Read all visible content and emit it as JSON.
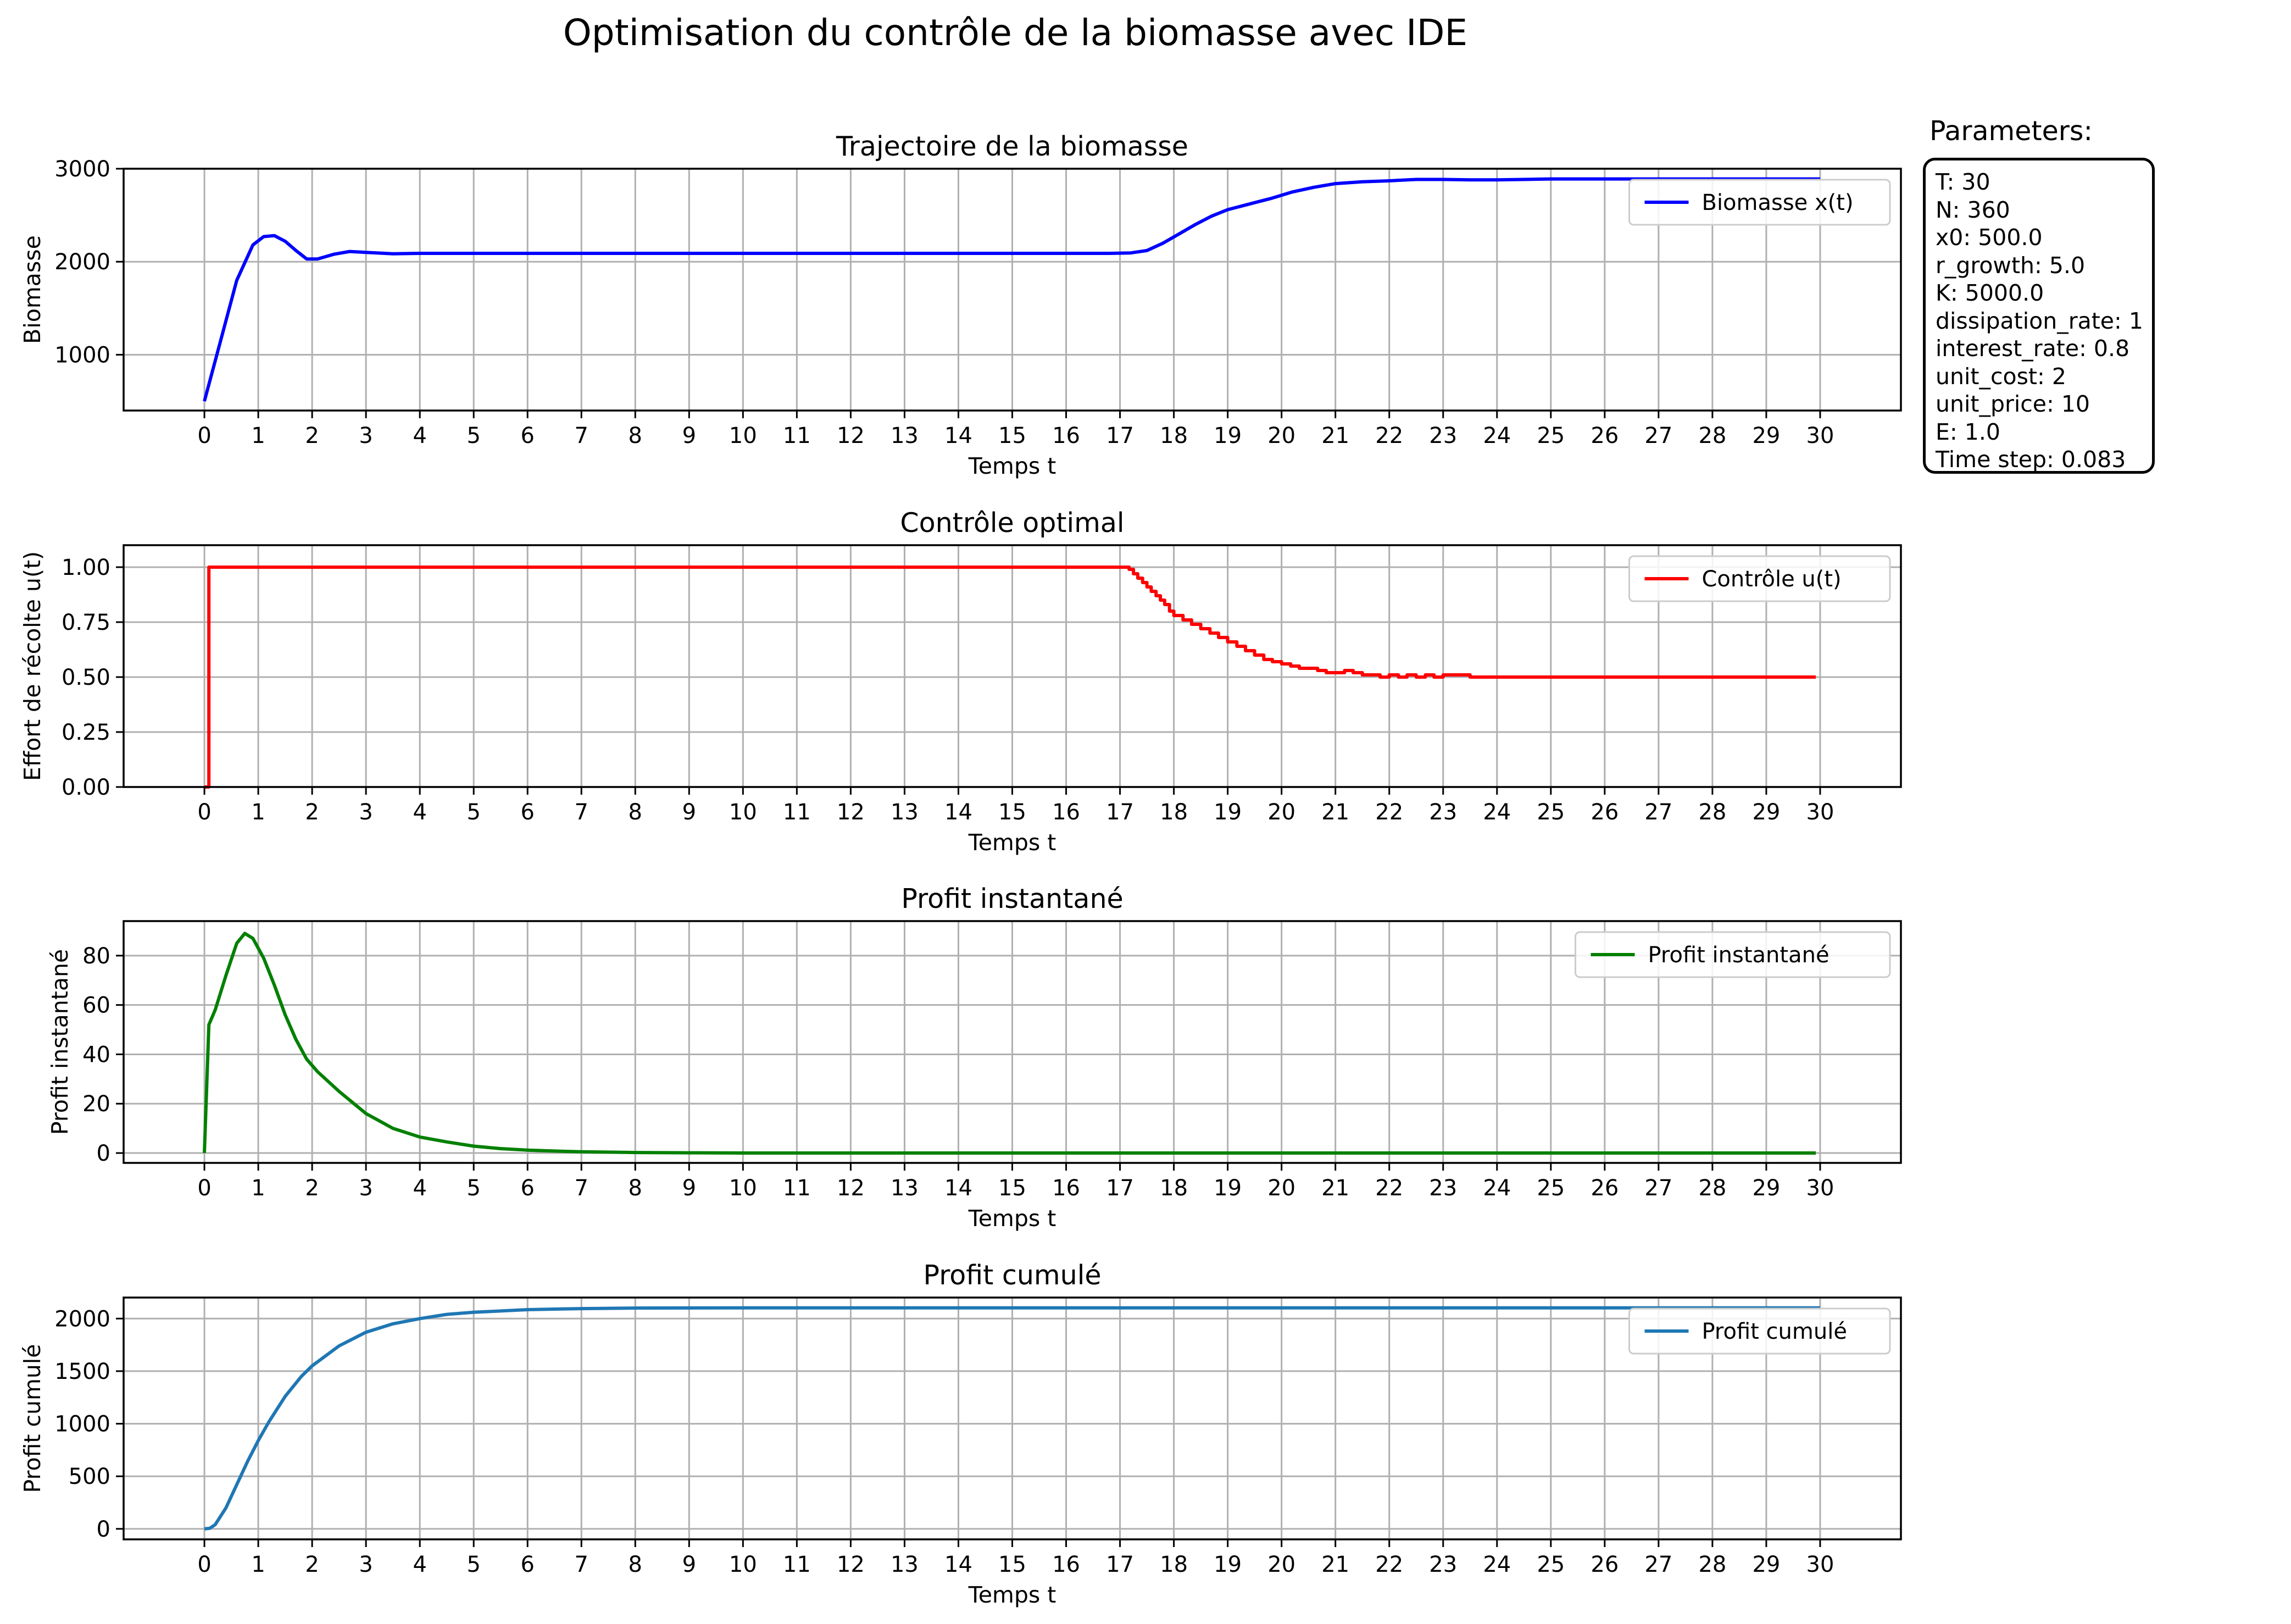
{
  "figure_title": "Optimisation du contrôle de la biomasse avec IDE",
  "parameters": {
    "title": "Parameters:",
    "lines": [
      "T: 30",
      "N: 360",
      "x0: 500.0",
      "r_growth: 5.0",
      "K: 5000.0",
      "dissipation_rate: 1",
      "interest_rate: 0.8",
      "unit_cost: 2",
      "unit_price: 10",
      "E: 1.0",
      "Time step: 0.083"
    ]
  },
  "chart_data": [
    {
      "type": "line",
      "title": "Trajectoire de la biomasse",
      "xlabel": "Temps t",
      "ylabel": "Biomasse",
      "xlim": [
        -1.5,
        31.5
      ],
      "ylim": [
        400,
        3000
      ],
      "xticks": [
        0,
        1,
        2,
        3,
        4,
        5,
        6,
        7,
        8,
        9,
        10,
        11,
        12,
        13,
        14,
        15,
        16,
        17,
        18,
        19,
        20,
        21,
        22,
        23,
        24,
        25,
        26,
        27,
        28,
        29,
        30
      ],
      "yticks": [
        1000,
        2000,
        3000
      ],
      "grid": true,
      "legend": "top-right",
      "series": [
        {
          "name": "Biomasse x(t)",
          "color": "#0000ff",
          "step": false,
          "x": [
            0,
            0.3,
            0.6,
            0.9,
            1.1,
            1.3,
            1.5,
            1.7,
            1.9,
            2.1,
            2.4,
            2.7,
            3.0,
            3.5,
            4.0,
            5,
            8,
            12,
            16,
            16.8,
            17.2,
            17.5,
            17.8,
            18.1,
            18.4,
            18.7,
            19.0,
            19.4,
            19.8,
            20.2,
            20.6,
            21.0,
            21.5,
            22.0,
            22.5,
            23.0,
            23.5,
            24.0,
            24.5,
            25.0,
            25.5,
            26,
            27,
            28,
            29,
            30
          ],
          "y": [
            500,
            1150,
            1800,
            2180,
            2270,
            2280,
            2220,
            2120,
            2030,
            2030,
            2080,
            2110,
            2100,
            2085,
            2090,
            2090,
            2090,
            2090,
            2090,
            2090,
            2095,
            2120,
            2200,
            2300,
            2400,
            2490,
            2560,
            2620,
            2680,
            2750,
            2800,
            2840,
            2860,
            2870,
            2885,
            2885,
            2880,
            2880,
            2885,
            2890,
            2890,
            2890,
            2890,
            2890,
            2890,
            2890
          ]
        }
      ]
    },
    {
      "type": "line",
      "title": "Contrôle optimal",
      "xlabel": "Temps t",
      "ylabel": "Effort de récolte u(t)",
      "xlim": [
        -1.5,
        31.5
      ],
      "ylim": [
        0,
        1.1
      ],
      "xticks": [
        0,
        1,
        2,
        3,
        4,
        5,
        6,
        7,
        8,
        9,
        10,
        11,
        12,
        13,
        14,
        15,
        16,
        17,
        18,
        19,
        20,
        21,
        22,
        23,
        24,
        25,
        26,
        27,
        28,
        29,
        30
      ],
      "yticks": [
        0.0,
        0.25,
        0.5,
        0.75,
        1.0
      ],
      "grid": true,
      "legend": "top-right",
      "series": [
        {
          "name": "Contrôle u(t)",
          "color": "#ff0000",
          "step": true,
          "x": [
            0,
            0.083,
            16.67,
            17.0,
            17.17,
            17.25,
            17.33,
            17.42,
            17.5,
            17.58,
            17.67,
            17.75,
            17.83,
            17.92,
            18.0,
            18.17,
            18.33,
            18.5,
            18.67,
            18.83,
            19.0,
            19.17,
            19.33,
            19.5,
            19.67,
            19.83,
            20.0,
            20.17,
            20.33,
            20.5,
            20.67,
            20.83,
            21.0,
            21.17,
            21.33,
            21.5,
            21.67,
            21.83,
            22.0,
            22.17,
            22.33,
            22.5,
            22.67,
            22.83,
            23.0,
            23.5,
            24.0,
            24.5,
            25.0,
            26.0,
            27.0,
            28.0,
            29.0,
            29.92
          ],
          "y": [
            0,
            1.0,
            1.0,
            1.0,
            0.99,
            0.97,
            0.95,
            0.93,
            0.91,
            0.89,
            0.87,
            0.85,
            0.83,
            0.8,
            0.78,
            0.76,
            0.74,
            0.72,
            0.7,
            0.68,
            0.66,
            0.64,
            0.62,
            0.6,
            0.58,
            0.57,
            0.56,
            0.55,
            0.54,
            0.54,
            0.53,
            0.52,
            0.52,
            0.53,
            0.52,
            0.51,
            0.51,
            0.5,
            0.51,
            0.5,
            0.51,
            0.5,
            0.51,
            0.5,
            0.51,
            0.5,
            0.5,
            0.5,
            0.5,
            0.5,
            0.5,
            0.5,
            0.5,
            0.5
          ]
        }
      ]
    },
    {
      "type": "line",
      "title": "Profit instantané",
      "xlabel": "Temps t",
      "ylabel": "Profit instantané",
      "xlim": [
        -1.5,
        31.5
      ],
      "ylim": [
        -4,
        94
      ],
      "xticks": [
        0,
        1,
        2,
        3,
        4,
        5,
        6,
        7,
        8,
        9,
        10,
        11,
        12,
        13,
        14,
        15,
        16,
        17,
        18,
        19,
        20,
        21,
        22,
        23,
        24,
        25,
        26,
        27,
        28,
        29,
        30
      ],
      "yticks": [
        0,
        20,
        40,
        60,
        80
      ],
      "grid": true,
      "legend": "top-right",
      "series": [
        {
          "name": "Profit instantané",
          "color": "#008000",
          "step": false,
          "x": [
            0,
            0.083,
            0.2,
            0.4,
            0.6,
            0.75,
            0.9,
            1.1,
            1.3,
            1.5,
            1.7,
            1.9,
            2.1,
            2.5,
            3.0,
            3.5,
            4.0,
            4.5,
            5.0,
            5.5,
            6.0,
            6.5,
            7.0,
            8.0,
            9.0,
            10,
            15,
            20,
            25,
            29.92
          ],
          "y": [
            0,
            52,
            58,
            72,
            85,
            89,
            87,
            79,
            68,
            56,
            46,
            38,
            33,
            25,
            16,
            10,
            6.5,
            4.5,
            2.8,
            1.8,
            1.2,
            0.8,
            0.5,
            0.2,
            0.1,
            0,
            0,
            0,
            0,
            0
          ]
        }
      ]
    },
    {
      "type": "line",
      "title": "Profit cumulé",
      "xlabel": "Temps t",
      "ylabel": "Profit cumulé",
      "xlim": [
        -1.5,
        31.5
      ],
      "ylim": [
        -100,
        2200
      ],
      "xticks": [
        0,
        1,
        2,
        3,
        4,
        5,
        6,
        7,
        8,
        9,
        10,
        11,
        12,
        13,
        14,
        15,
        16,
        17,
        18,
        19,
        20,
        21,
        22,
        23,
        24,
        25,
        26,
        27,
        28,
        29,
        30
      ],
      "yticks": [
        0,
        500,
        1000,
        1500,
        2000
      ],
      "grid": true,
      "legend": "top-right",
      "series": [
        {
          "name": "Profit cumulé",
          "color": "#1f77b4",
          "step": false,
          "x": [
            0,
            0.1,
            0.2,
            0.4,
            0.6,
            0.8,
            1.0,
            1.2,
            1.5,
            1.8,
            2.0,
            2.5,
            3.0,
            3.5,
            4.0,
            4.5,
            5.0,
            6.0,
            7.0,
            8.0,
            10,
            15,
            20,
            25,
            30
          ],
          "y": [
            0,
            5,
            40,
            200,
            420,
            640,
            840,
            1020,
            1260,
            1450,
            1550,
            1740,
            1870,
            1950,
            2000,
            2040,
            2060,
            2085,
            2095,
            2100,
            2102,
            2102,
            2102,
            2102,
            2102
          ]
        }
      ]
    }
  ]
}
